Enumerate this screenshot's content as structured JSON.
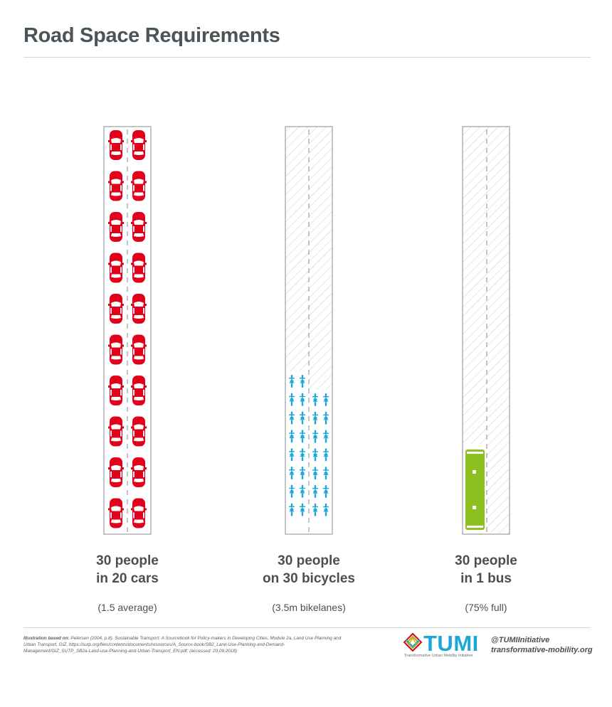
{
  "title": "Road Space Requirements",
  "columns": [
    {
      "label_line1": "30 people",
      "label_line2": "in 20 cars",
      "note": "(1.5 average)",
      "vehicles": 20,
      "people": 30
    },
    {
      "label_line1": "30 people",
      "label_line2": "on 30 bicycles",
      "note": "(3.5m bikelanes)",
      "vehicles": 30,
      "people": 30
    },
    {
      "label_line1": "30 people",
      "label_line2": "in 1 bus",
      "note": "(75% full)",
      "vehicles": 1,
      "people": 30
    }
  ],
  "footer": {
    "credit_bold": "Illustration based on:",
    "credit_text": " Petersen (2004, p.8). Sustainable Transport: A Sourcebook for Policy-makers in Developing Cities, Module 2a, Land Use Planning and Urban Transport, GIZ. https://sutp.org/files/contents/documents/resources/A_Source-book/SB2_Land-Use-Planning-and-Demand-Management/GIZ_SUTP_SB2a-Land-use-Planning-and-Urban-Transport_EN.pdf; (accessed: 20.09.2018)",
    "logo_word": "TUMI",
    "logo_tagline": "Transformative Urban Mobility Initiative",
    "handle": "@TUMIInitiative",
    "website": "transformative-mobility.org"
  },
  "colors": {
    "car": "#e3001b",
    "bicycle": "#1ea7d6",
    "bus": "#8cc11f",
    "hatch": "#c9cccf",
    "road_border": "#9a9fa2"
  }
}
